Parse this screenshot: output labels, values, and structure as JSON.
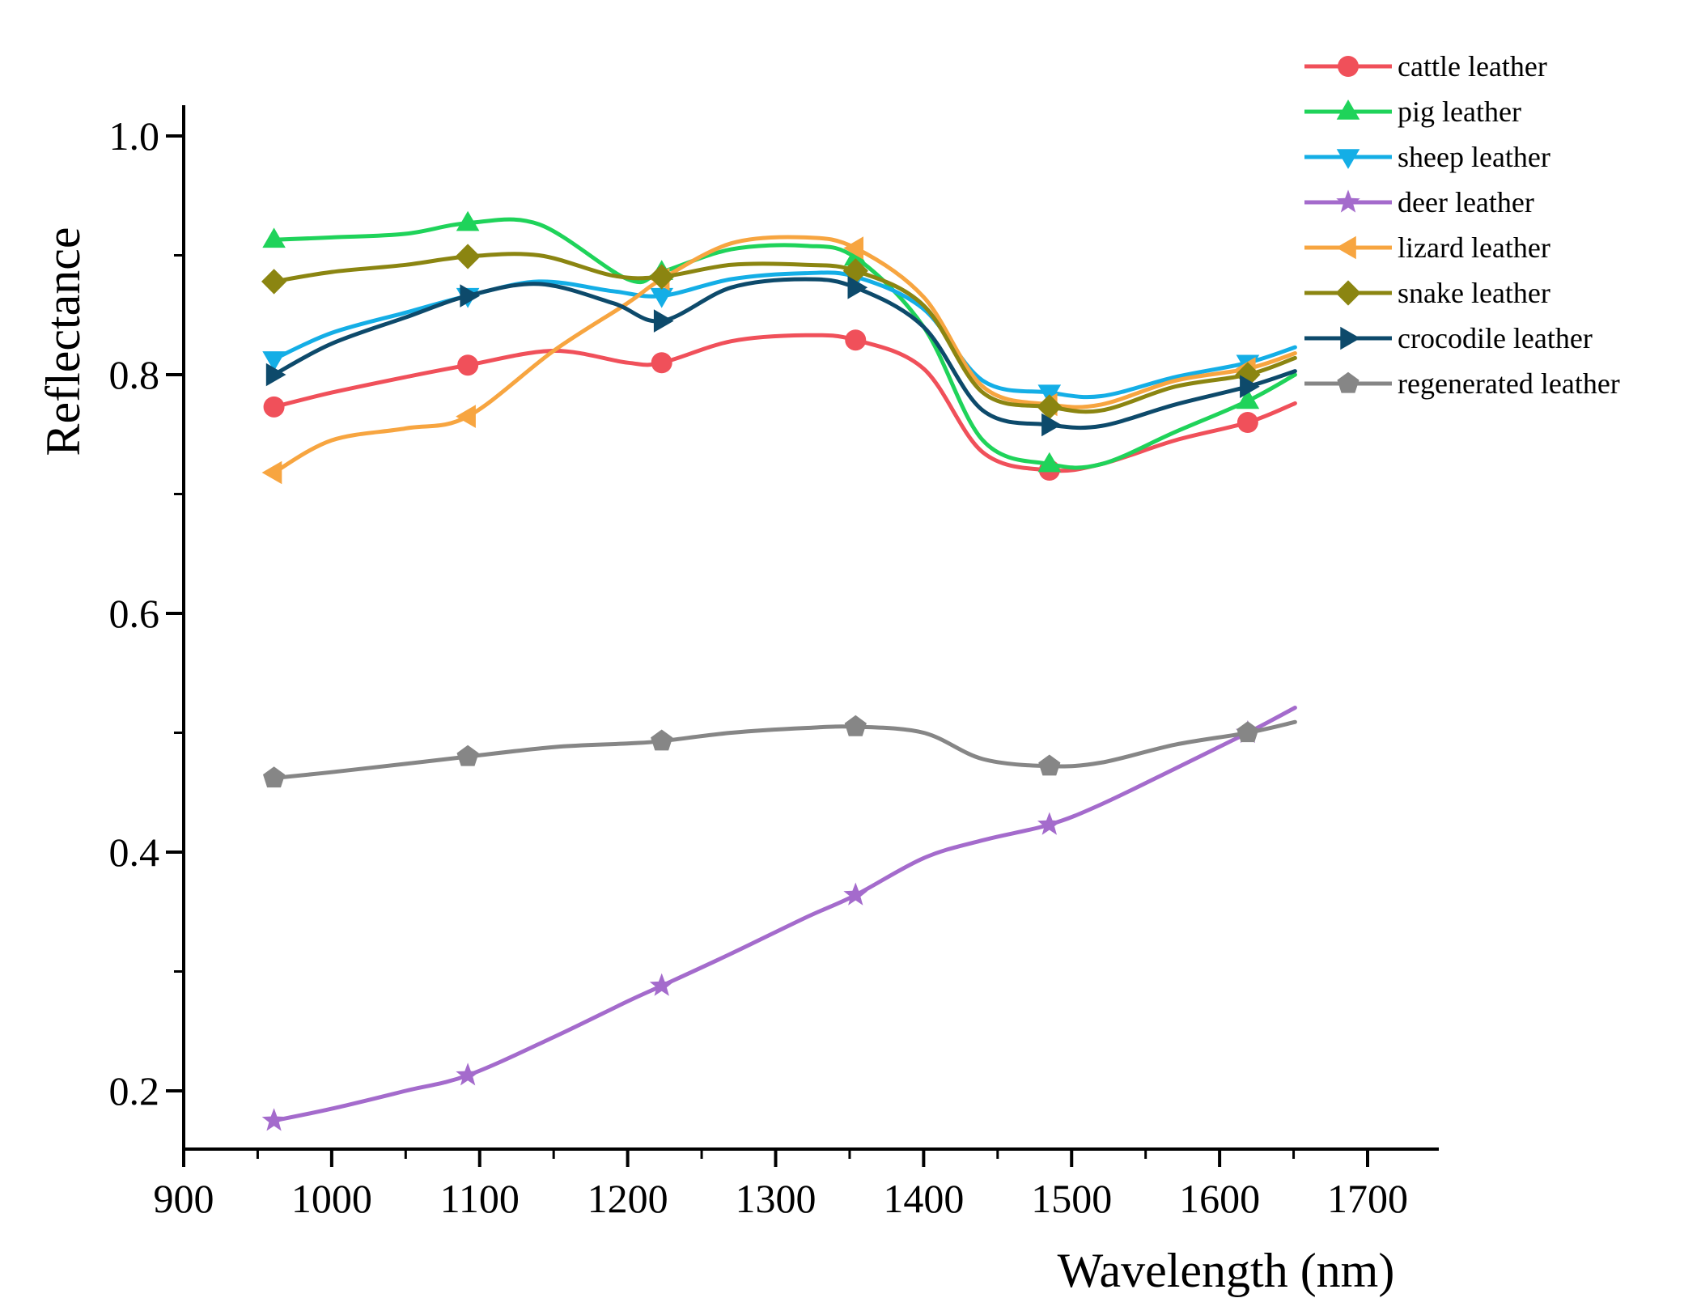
{
  "chart_data": {
    "type": "line",
    "title": "",
    "xlabel": "Wavelength (nm)",
    "ylabel": "Reflectance",
    "xlim": [
      900,
      1750
    ],
    "ylim": [
      0.15,
      1.0
    ],
    "xticks": [
      900,
      1000,
      1100,
      1200,
      1300,
      1400,
      1500,
      1600,
      1700
    ],
    "xtick_labels": [
      "900",
      "1000",
      "1100",
      "1200",
      "1300",
      "1400",
      "1500",
      "1600",
      "1700"
    ],
    "yticks": [
      0.2,
      0.4,
      0.6,
      0.8,
      1.0
    ],
    "ytick_labels": [
      "0.2",
      "0.4",
      "0.6",
      "0.8",
      "1.0"
    ],
    "legend_position": "top-right",
    "grid": false,
    "series": [
      {
        "name": "cattle leather",
        "color": "#f0505a",
        "marker": "circle",
        "x": [
          961,
          1000,
          1050,
          1092,
          1150,
          1200,
          1223,
          1270,
          1320,
          1354,
          1400,
          1440,
          1485,
          1520,
          1570,
          1619,
          1651
        ],
        "y": [
          0.773,
          0.785,
          0.798,
          0.808,
          0.82,
          0.81,
          0.81,
          0.828,
          0.833,
          0.829,
          0.805,
          0.735,
          0.72,
          0.725,
          0.745,
          0.76,
          0.776
        ],
        "marker_index": [
          0,
          3,
          6,
          9,
          12,
          15
        ]
      },
      {
        "name": "pig leather",
        "color": "#1fd35a",
        "marker": "triangle-up",
        "x": [
          961,
          1000,
          1050,
          1092,
          1140,
          1200,
          1223,
          1270,
          1320,
          1354,
          1400,
          1440,
          1485,
          1520,
          1570,
          1619,
          1651
        ],
        "y": [
          0.913,
          0.915,
          0.918,
          0.927,
          0.926,
          0.88,
          0.886,
          0.905,
          0.908,
          0.898,
          0.84,
          0.745,
          0.725,
          0.725,
          0.752,
          0.778,
          0.8
        ],
        "marker_index": [
          0,
          3,
          6,
          9,
          12,
          15
        ]
      },
      {
        "name": "sheep leather",
        "color": "#14aee6",
        "marker": "triangle-down",
        "x": [
          961,
          1000,
          1050,
          1092,
          1140,
          1190,
          1223,
          1270,
          1320,
          1354,
          1400,
          1440,
          1485,
          1520,
          1570,
          1619,
          1651
        ],
        "y": [
          0.813,
          0.835,
          0.852,
          0.866,
          0.878,
          0.87,
          0.866,
          0.88,
          0.885,
          0.882,
          0.855,
          0.795,
          0.785,
          0.782,
          0.798,
          0.81,
          0.823
        ],
        "marker_index": [
          0,
          3,
          6,
          9,
          12,
          15
        ]
      },
      {
        "name": "deer leather",
        "color": "#a46bcc",
        "marker": "star",
        "x": [
          961,
          1000,
          1050,
          1092,
          1150,
          1200,
          1223,
          1270,
          1320,
          1354,
          1400,
          1440,
          1485,
          1520,
          1570,
          1619,
          1651
        ],
        "y": [
          0.175,
          0.185,
          0.2,
          0.213,
          0.245,
          0.275,
          0.288,
          0.315,
          0.345,
          0.364,
          0.395,
          0.41,
          0.423,
          0.44,
          0.47,
          0.5,
          0.521
        ],
        "marker_index": [
          0,
          3,
          6,
          9,
          12,
          15
        ]
      },
      {
        "name": "lizard leather",
        "color": "#f7a540",
        "marker": "triangle-left",
        "x": [
          961,
          1000,
          1050,
          1092,
          1150,
          1200,
          1223,
          1270,
          1320,
          1354,
          1400,
          1440,
          1485,
          1520,
          1570,
          1619,
          1651
        ],
        "y": [
          0.718,
          0.745,
          0.755,
          0.765,
          0.82,
          0.86,
          0.88,
          0.91,
          0.915,
          0.906,
          0.865,
          0.79,
          0.775,
          0.775,
          0.795,
          0.805,
          0.818
        ],
        "marker_index": [
          0,
          3,
          6,
          9,
          12,
          15
        ]
      },
      {
        "name": "snake leather",
        "color": "#8b8511",
        "marker": "diamond",
        "x": [
          961,
          1000,
          1050,
          1092,
          1140,
          1190,
          1223,
          1270,
          1320,
          1354,
          1400,
          1440,
          1485,
          1520,
          1570,
          1619,
          1651
        ],
        "y": [
          0.878,
          0.886,
          0.892,
          0.899,
          0.9,
          0.883,
          0.882,
          0.892,
          0.892,
          0.887,
          0.858,
          0.785,
          0.773,
          0.77,
          0.79,
          0.8,
          0.814
        ],
        "marker_index": [
          0,
          3,
          6,
          9,
          12,
          15
        ]
      },
      {
        "name": "crocodile leather",
        "color": "#0d4a6b",
        "marker": "triangle-right",
        "x": [
          961,
          1000,
          1050,
          1092,
          1140,
          1190,
          1223,
          1270,
          1320,
          1354,
          1400,
          1440,
          1485,
          1520,
          1570,
          1619,
          1651
        ],
        "y": [
          0.8,
          0.826,
          0.848,
          0.866,
          0.876,
          0.86,
          0.845,
          0.873,
          0.88,
          0.873,
          0.84,
          0.77,
          0.758,
          0.757,
          0.775,
          0.79,
          0.803
        ],
        "marker_index": [
          0,
          3,
          6,
          9,
          12,
          15
        ]
      },
      {
        "name": "regenerated leather",
        "color": "#868686",
        "marker": "pentagon",
        "x": [
          961,
          1000,
          1050,
          1092,
          1150,
          1200,
          1223,
          1270,
          1320,
          1354,
          1400,
          1440,
          1485,
          1520,
          1570,
          1619,
          1651
        ],
        "y": [
          0.462,
          0.467,
          0.474,
          0.48,
          0.488,
          0.491,
          0.493,
          0.5,
          0.504,
          0.505,
          0.5,
          0.478,
          0.472,
          0.475,
          0.49,
          0.5,
          0.509
        ],
        "marker_index": [
          0,
          3,
          6,
          9,
          12,
          15
        ]
      }
    ]
  }
}
